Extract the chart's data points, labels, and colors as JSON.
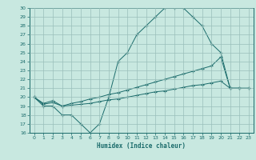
{
  "xlabel": "Humidex (Indice chaleur)",
  "background_color": "#c8e8e0",
  "grid_color": "#9abfba",
  "line_color": "#1a6b6b",
  "xlim": [
    -0.5,
    23.5
  ],
  "ylim": [
    16,
    30
  ],
  "xticks": [
    0,
    1,
    2,
    3,
    4,
    5,
    6,
    7,
    8,
    9,
    10,
    11,
    12,
    13,
    14,
    15,
    16,
    17,
    18,
    19,
    20,
    21,
    22,
    23
  ],
  "yticks": [
    16,
    17,
    18,
    19,
    20,
    21,
    22,
    23,
    24,
    25,
    26,
    27,
    28,
    29,
    30
  ],
  "line1_x": [
    0,
    1,
    2,
    3,
    4,
    5,
    6,
    7,
    8,
    9,
    10,
    11,
    12,
    13,
    14,
    15,
    16,
    17,
    18,
    19,
    20,
    21,
    22
  ],
  "line1_y": [
    20,
    19,
    19,
    18,
    18,
    17,
    16,
    17,
    20,
    24,
    25,
    27,
    28,
    29,
    30,
    30,
    30,
    29,
    28,
    26,
    25,
    21,
    21
  ],
  "line2_x": [
    0,
    1,
    2,
    3,
    4,
    5,
    6,
    7,
    8,
    9,
    10,
    11,
    12,
    13,
    14,
    15,
    16,
    17,
    18,
    19,
    20,
    21,
    22,
    23
  ],
  "line2_y": [
    20,
    19.3,
    19.6,
    19.0,
    19.3,
    19.5,
    19.8,
    20.0,
    20.3,
    20.5,
    20.8,
    21.1,
    21.4,
    21.7,
    22.0,
    22.3,
    22.6,
    22.9,
    23.2,
    23.5,
    24.5,
    21.0,
    21.0,
    21.0
  ],
  "line3_x": [
    0,
    1,
    2,
    3,
    4,
    5,
    6,
    7,
    8,
    9,
    10,
    11,
    12,
    13,
    14,
    15,
    16,
    17,
    18,
    19,
    20,
    21,
    22,
    23
  ],
  "line3_y": [
    20,
    19.2,
    19.4,
    19.0,
    19.1,
    19.2,
    19.3,
    19.5,
    19.7,
    19.8,
    20.0,
    20.2,
    20.4,
    20.6,
    20.7,
    20.9,
    21.1,
    21.3,
    21.4,
    21.6,
    21.8,
    21.0,
    21.0,
    21.0
  ]
}
